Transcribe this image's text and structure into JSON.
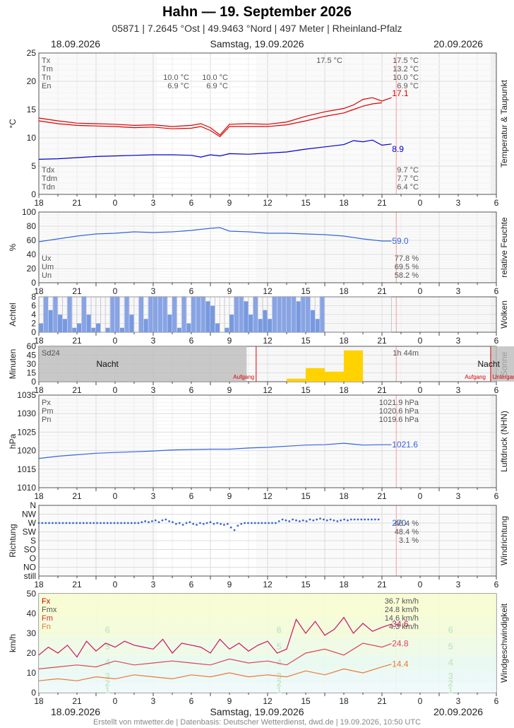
{
  "header": {
    "title": "Hahn  —  19. September 2026",
    "subtitle": "05871  |  7.2645 °Ost  |  49.9463 °Nord  |  497 Meter  |  Rheinland-Pfalz",
    "date_left": "18.09.2026",
    "date_center": "Samstag, 19.09.2026",
    "date_right": "20.09.2026"
  },
  "footer": "Erstellt von mtwetter.de | Datenbasis: Deutscher Wetterdienst, dwd.de | 19.09.2026, 10:50 UTC",
  "x_ticks": [
    "18",
    "21",
    "0",
    "3",
    "6",
    "9",
    "12",
    "15",
    "18",
    "21",
    "0",
    "3",
    "6"
  ],
  "chart_data": [
    {
      "id": "temp",
      "type": "line",
      "ylabel": "°C",
      "side_label": "Temperatur & Taupunkt",
      "ylim": [
        0,
        25
      ],
      "yticks": [
        "0",
        "5",
        "10",
        "15",
        "20",
        "25"
      ],
      "stats_top": [
        {
          "name": "Tx",
          "v1": "",
          "v2": "",
          "v3": "17.5 °C",
          "v4": "17.5 °C"
        },
        {
          "name": "Tm",
          "v1": "",
          "v2": "",
          "v3": "",
          "v4": "13.2 °C"
        },
        {
          "name": "Tn",
          "v1": "10.0 °C",
          "v2": "10.0 °C",
          "v3": "",
          "v4": "10.0 °C"
        },
        {
          "name": "En",
          "v1": "6.9 °C",
          "v2": "6.9 °C",
          "v3": "",
          "v4": "6.9 °C"
        }
      ],
      "stats_bottom": [
        {
          "name": "Tdx",
          "v4": "9.7 °C"
        },
        {
          "name": "Tdm",
          "v4": "7.7 °C"
        },
        {
          "name": "Tdn",
          "v4": "6.4 °C"
        }
      ],
      "series": [
        {
          "color": "#dd0000",
          "x": [
            18,
            19,
            20,
            21,
            22,
            23,
            24,
            25,
            26,
            26.5,
            27,
            27.5,
            28,
            29,
            30,
            31,
            32,
            33,
            34,
            34.5,
            35,
            35.5,
            36,
            36.5
          ],
          "y": [
            13.5,
            13,
            12.6,
            12.5,
            12.4,
            12.2,
            12.3,
            12,
            12.2,
            12.5,
            11.8,
            10.5,
            12.4,
            12.5,
            12.4,
            12.8,
            13.8,
            14.6,
            15.2,
            15.8,
            16.8,
            17.1,
            16.5,
            17.1
          ]
        },
        {
          "color": "#dd0000",
          "x": [
            18,
            19,
            20,
            21,
            22,
            23,
            24,
            25,
            26,
            26.5,
            27,
            27.5,
            28,
            29,
            30,
            31,
            32,
            33,
            34,
            34.5,
            35,
            35.5,
            36
          ],
          "y": [
            13,
            12.5,
            12.2,
            12.1,
            12,
            11.8,
            11.9,
            11.6,
            11.7,
            12,
            11.3,
            10.2,
            12,
            12,
            12,
            12.3,
            13,
            13.8,
            14.4,
            15,
            15.6,
            16,
            16.2
          ]
        },
        {
          "color": "#0000cc",
          "x": [
            18,
            19,
            20,
            21,
            22,
            23,
            24,
            25,
            26,
            26.5,
            27,
            27.5,
            28,
            29,
            30,
            31,
            32,
            33,
            34,
            34.5,
            35,
            35.5,
            36,
            36.5
          ],
          "y": [
            6.2,
            6.3,
            6.5,
            6.7,
            6.8,
            6.9,
            7,
            7,
            6.9,
            6.6,
            7,
            6.8,
            7.2,
            7.1,
            7.3,
            7.5,
            8,
            8.4,
            8.8,
            9.5,
            9.3,
            9.6,
            8.7,
            8.9
          ]
        }
      ],
      "end_labels": [
        {
          "text": "17.1",
          "y": 17.9,
          "color": "#dd0000"
        },
        {
          "text": "8.9",
          "y": 8.0,
          "color": "#0000cc"
        }
      ]
    },
    {
      "id": "humidity",
      "type": "line",
      "ylabel": "%",
      "side_label": "relative Feuchte",
      "ylim": [
        0,
        100
      ],
      "yticks": [
        "0",
        "20",
        "40",
        "60",
        "80",
        "100"
      ],
      "stats_bottom": [
        {
          "name": "Ux",
          "v4": "77.8 %"
        },
        {
          "name": "Um",
          "v4": "69.5 %"
        },
        {
          "name": "Un",
          "v4": "58.2 %"
        }
      ],
      "series": [
        {
          "color": "#3366dd",
          "x": [
            18,
            19,
            20,
            21,
            22,
            23,
            24,
            25,
            26,
            27,
            27.5,
            28,
            29,
            30,
            31,
            32,
            33,
            34,
            35,
            36,
            36.5
          ],
          "y": [
            58,
            62,
            66,
            69,
            70,
            72,
            71,
            72,
            74,
            77,
            78,
            73,
            72,
            70,
            70,
            69,
            68,
            66,
            62,
            59,
            59
          ]
        }
      ],
      "end_labels": [
        {
          "text": "59.0",
          "y": 59,
          "color": "#3366dd"
        }
      ]
    },
    {
      "id": "clouds",
      "type": "bar",
      "ylabel": "Achtel",
      "side_label": "Wolken",
      "ylim": [
        0,
        8
      ],
      "yticks": [
        "0",
        "2",
        "4",
        "6",
        "8"
      ],
      "x_start": 18,
      "x_step": 0.25,
      "values": [
        2,
        8,
        5,
        8,
        4,
        3,
        8,
        1,
        2,
        8,
        4,
        1,
        2,
        0,
        1,
        8,
        8,
        1,
        8,
        4,
        0,
        8,
        3,
        8,
        8,
        8,
        8,
        4,
        8,
        1,
        8,
        2,
        8,
        8,
        8,
        7,
        6,
        2,
        0,
        1,
        4,
        8,
        8,
        7,
        4,
        8,
        3,
        5,
        3,
        8,
        8,
        8,
        8,
        8,
        7,
        8,
        8,
        5,
        3,
        8
      ]
    },
    {
      "id": "sun",
      "type": "bar",
      "ylabel": "Minuten",
      "side_label": "Sonne",
      "ylim": [
        0,
        60
      ],
      "yticks": [
        "0",
        "15",
        "30",
        "45",
        "60"
      ],
      "stats_top_left": "Sd24",
      "stats_top_right": "1h 44m",
      "labels": {
        "night": "Nacht",
        "sunrise": "Aufgang",
        "sunset": "Untergang"
      },
      "sun_events": [
        29.4,
        41.7,
        53.4
      ],
      "bars": [
        {
          "x": 31,
          "w": 1,
          "y": 5
        },
        {
          "x": 32,
          "w": 1,
          "y": 23
        },
        {
          "x": 33,
          "w": 1,
          "y": 17
        },
        {
          "x": 34,
          "w": 1,
          "y": 53
        }
      ]
    },
    {
      "id": "pressure",
      "type": "line",
      "ylabel": "hPa",
      "side_label": "Luftdruck (NHN)",
      "ylim": [
        1010,
        1035
      ],
      "yticks": [
        "1010",
        "1015",
        "1020",
        "1025",
        "1030",
        "1035"
      ],
      "stats_top": [
        {
          "name": "Px",
          "v4": "1021.9 hPa"
        },
        {
          "name": "Pm",
          "v4": "1020.6 hPa"
        },
        {
          "name": "Pn",
          "v4": "1019.6 hPa"
        }
      ],
      "series": [
        {
          "color": "#3366dd",
          "x": [
            18,
            19,
            20,
            21,
            22,
            23,
            24,
            25,
            26,
            27,
            28,
            29,
            30,
            31,
            32,
            33,
            34,
            35,
            36,
            36.5
          ],
          "y": [
            1017.9,
            1018.5,
            1018.9,
            1019.3,
            1019.5,
            1019.7,
            1019.9,
            1020.2,
            1020.3,
            1020.4,
            1020.4,
            1020.7,
            1020.9,
            1021.2,
            1021.5,
            1021.6,
            1022.0,
            1021.5,
            1021.6,
            1021.6
          ]
        }
      ],
      "end_labels": [
        {
          "text": "1021.6",
          "y": 1021.6,
          "color": "#3366dd"
        }
      ]
    },
    {
      "id": "winddir",
      "type": "scatter",
      "ylabel": "Richtung",
      "side_label": "Windrichtung",
      "ycats": [
        "still",
        "NO",
        "O",
        "SO",
        "S",
        "SW",
        "W",
        "NW",
        "N"
      ],
      "stats_top": [
        {
          "name": "",
          "v4": "48.4 %"
        },
        {
          "name": "",
          "v4": "48.4 %"
        },
        {
          "name": "",
          "v4": "3.1 %"
        }
      ],
      "points_x_start": 18,
      "points_step": 0.18,
      "points_y": [
        5,
        5,
        5,
        5,
        5,
        5,
        5,
        5,
        5,
        5,
        5,
        5,
        5,
        5,
        5,
        5,
        5,
        5,
        5,
        5,
        5,
        5,
        5,
        5,
        5,
        5,
        5,
        5,
        5,
        5,
        5.1,
        5.2,
        5.1,
        5.2,
        5.3,
        5.1,
        5.3,
        5.4,
        5.2,
        5.1,
        4.9,
        5,
        4.8,
        5,
        5.1,
        4.9,
        4.8,
        5,
        4.9,
        5,
        5.1,
        4.9,
        5,
        4.9,
        4.8,
        4.9,
        4.5,
        4.2,
        4.7,
        4.9,
        5,
        5,
        5,
        5,
        5,
        5,
        5,
        5,
        5,
        5,
        5.2,
        5.4,
        5.3,
        5.2,
        5.4,
        5.3,
        5.2,
        5.3,
        5.2,
        5.4,
        5.3,
        5.4,
        5.5,
        5.4,
        5.3,
        5.4,
        5.3,
        5.2,
        5.3,
        5.4,
        5.3,
        5.4,
        5.4,
        5.4,
        5.4,
        5.4,
        5.4,
        5.4,
        5.4,
        5.4
      ],
      "end_labels": [
        {
          "text": "270",
          "y": 6.0,
          "color": "#3366dd"
        }
      ]
    },
    {
      "id": "wind",
      "type": "line",
      "ylabel": "km/h",
      "side_label": "Windgeschwindigkeit",
      "ylim": [
        0,
        50
      ],
      "yticks": [
        "0",
        "10",
        "20",
        "30",
        "40",
        "50"
      ],
      "beaufort": [
        "1",
        "2",
        "3",
        "4",
        "5",
        "6"
      ],
      "beaufort_y": [
        1.5,
        5,
        8.5,
        15.5,
        23.5,
        32
      ],
      "stats_top": [
        {
          "name": "Fx",
          "v4": "36.7 km/h",
          "color": "#cc0000"
        },
        {
          "name": "Fmx",
          "v4": "24.8 km/h",
          "color": "#555555"
        },
        {
          "name": "Fm",
          "v4": "14.6 km/h",
          "color": "#cc3333"
        },
        {
          "name": "Fn",
          "v4": "4.3 km/h",
          "color": "#ee7733"
        }
      ],
      "series": [
        {
          "color": "#cc1166",
          "x": [
            18,
            18.5,
            19,
            19.5,
            20,
            20.5,
            21,
            21.5,
            22,
            22.5,
            23,
            23.5,
            24,
            24.5,
            25,
            25.5,
            26,
            26.5,
            27,
            27.5,
            28,
            28.5,
            29,
            29.5,
            30,
            30.5,
            31,
            31.5,
            32,
            32.5,
            33,
            33.5,
            34,
            34.5,
            35,
            35.5,
            36,
            36.5
          ],
          "y": [
            19,
            23,
            20,
            24,
            18,
            26,
            21,
            25,
            23,
            26,
            24,
            23,
            22,
            27,
            20,
            25,
            24,
            23,
            20,
            27,
            22,
            25,
            21,
            24,
            26,
            20,
            22,
            37,
            30,
            36,
            29,
            32,
            38,
            30,
            35,
            31,
            33,
            34.6
          ]
        },
        {
          "color": "#dd4455",
          "x": [
            18,
            19,
            20,
            21,
            22,
            23,
            24,
            25,
            26,
            27,
            28,
            29,
            30,
            31,
            32,
            33,
            34,
            35,
            36,
            36.5
          ],
          "y": [
            12,
            13,
            14,
            13,
            16,
            14,
            15,
            16,
            15,
            14,
            17,
            15,
            16,
            14,
            20,
            22,
            19,
            25,
            23,
            24.8
          ]
        },
        {
          "color": "#ee7733",
          "x": [
            18,
            19,
            20,
            21,
            22,
            23,
            24,
            25,
            26,
            27,
            28,
            29,
            30,
            31,
            32,
            33,
            34,
            35,
            36,
            36.5
          ],
          "y": [
            6,
            7,
            6,
            8,
            7,
            9,
            8,
            7,
            9,
            8,
            10,
            8,
            9,
            8,
            11,
            9,
            12,
            10,
            13,
            14.4
          ]
        }
      ],
      "end_labels": [
        {
          "text": "34.6",
          "y": 34.6,
          "color": "#cc1166"
        },
        {
          "text": "24.8",
          "y": 24.8,
          "color": "#dd4455"
        },
        {
          "text": "14.4",
          "y": 14.4,
          "color": "#ee7733"
        }
      ]
    }
  ]
}
